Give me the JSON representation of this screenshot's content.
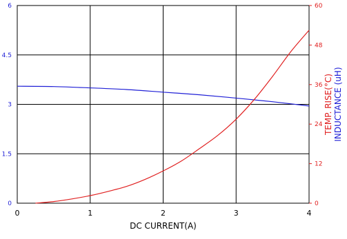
{
  "chart_data": {
    "type": "line",
    "xlabel": "DC CURRENT(A)",
    "xlim": [
      0,
      4
    ],
    "x_ticks": [
      "0",
      "1",
      "2",
      "3",
      "4"
    ],
    "y_left": {
      "label": "INDUCTANCE (uH)",
      "lim": [
        0,
        6
      ],
      "ticks": [
        "0",
        "1.5",
        "3",
        "4.5",
        "6"
      ],
      "color": "#1f1fd6"
    },
    "y_right": {
      "label": "TEMP. RISE(°C)",
      "lim": [
        0,
        60
      ],
      "ticks": [
        "0",
        "12",
        "24",
        "36",
        "48",
        "60"
      ],
      "color": "#e02020"
    },
    "grid": true,
    "series": [
      {
        "axis": "left",
        "color": "#1f1fd6",
        "x": [
          0,
          0.5,
          1,
          1.5,
          2,
          2.5,
          3,
          3.5,
          4
        ],
        "y": [
          3.55,
          3.54,
          3.5,
          3.45,
          3.37,
          3.29,
          3.19,
          3.08,
          2.95
        ]
      },
      {
        "axis": "right",
        "color": "#e02020",
        "x": [
          0.25,
          0.5,
          0.75,
          1,
          1.25,
          1.5,
          1.75,
          2,
          2.25,
          2.5,
          2.75,
          3,
          3.25,
          3.5,
          3.75,
          4
        ],
        "y": [
          0,
          0.5,
          1.3,
          2.3,
          3.6,
          5.1,
          7.2,
          9.8,
          12.8,
          16.6,
          20.6,
          25.5,
          31.5,
          38.5,
          46,
          52.5
        ]
      }
    ]
  }
}
